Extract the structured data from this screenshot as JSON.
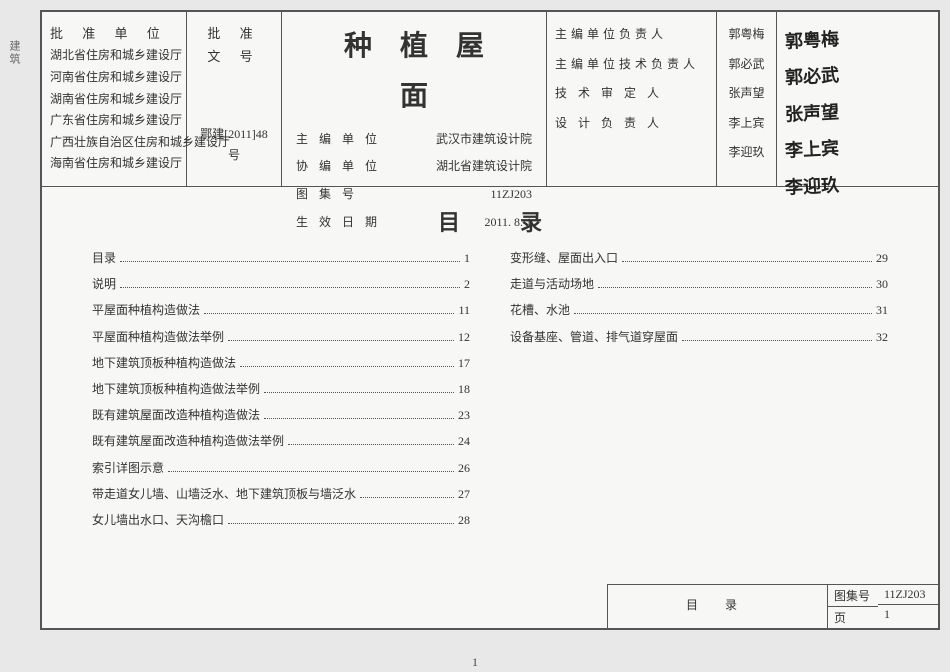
{
  "title": "种植屋面",
  "header": {
    "approve_unit_label": "批 准 单 位",
    "approve_units": [
      "湖北省住房和城乡建设厅",
      "河南省住房和城乡建设厅",
      "湖南省住房和城乡建设厅",
      "广东省住房和城乡建设厅",
      "广西壮族自治区住房和城乡建设厅",
      "海南省住房和城乡建设厅"
    ],
    "doc_no_label": "批 准 文 号",
    "doc_no": "鄂建[2011]48号",
    "fields": [
      {
        "l": "主 编 单 位",
        "r": "武汉市建筑设计院"
      },
      {
        "l": "协 编 单 位",
        "r": "湖北省建筑设计院"
      },
      {
        "l": "图 集 号",
        "r": "11ZJ203"
      },
      {
        "l": "生 效 日 期",
        "r": "2011. 8. 1"
      }
    ],
    "roles": [
      "主编单位负责人",
      "主编单位技术负责人",
      "技 术 审 定 人",
      "设 计 负 责 人",
      ""
    ],
    "names": [
      "郭粤梅",
      "郭必武",
      "张声望",
      "李上宾",
      "李迎玖"
    ],
    "signs": [
      "郭粤梅",
      "郭必武",
      "张声望",
      "李上宾",
      "李迎玖"
    ]
  },
  "toc_title": "目录",
  "toc_left": [
    {
      "t": "目录",
      "p": "1"
    },
    {
      "t": "说明",
      "p": "2"
    },
    {
      "t": "平屋面种植构造做法",
      "p": "11"
    },
    {
      "t": "平屋面种植构造做法举例",
      "p": "12"
    },
    {
      "t": "地下建筑顶板种植构造做法",
      "p": "17"
    },
    {
      "t": "地下建筑顶板种植构造做法举例",
      "p": "18"
    },
    {
      "t": "既有建筑屋面改造种植构造做法",
      "p": "23"
    },
    {
      "t": "既有建筑屋面改造种植构造做法举例",
      "p": "24"
    },
    {
      "t": "索引详图示意",
      "p": "26"
    },
    {
      "t": "带走道女儿墙、山墙泛水、地下建筑顶板与墙泛水",
      "p": "27"
    },
    {
      "t": "女儿墙出水口、天沟檐口",
      "p": "28"
    }
  ],
  "toc_right": [
    {
      "t": "变形缝、屋面出入口",
      "p": "29"
    },
    {
      "t": "走道与活动场地",
      "p": "30"
    },
    {
      "t": "花槽、水池",
      "p": "31"
    },
    {
      "t": "设备基座、管道、排气道穿屋面",
      "p": "32"
    }
  ],
  "footer": {
    "mulu": "目    录",
    "code_label": "图集号",
    "code": "11ZJ203",
    "page_label": "页",
    "page": "1"
  },
  "bottom_page": "1",
  "side_text": "建筑"
}
